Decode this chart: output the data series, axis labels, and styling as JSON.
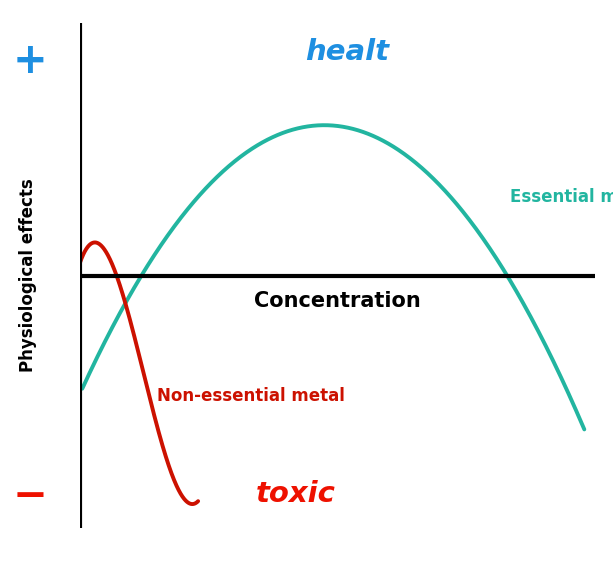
{
  "healt_text": "healt",
  "healt_color": "#1E8FE1",
  "toxic_text": "toxic",
  "toxic_color": "#EE1100",
  "concentration_text": "Concentration",
  "ylabel": "Physiological effects",
  "plus_color": "#1E8FE1",
  "minus_color": "#EE1100",
  "essential_label": "Essential metal",
  "essential_color": "#22B5A0",
  "nonessential_label": "Non-essential metal",
  "nonessential_color": "#CC1100",
  "axis_line_color": "#000000",
  "background_color": "#FFFFFF",
  "xlim": [
    0,
    10
  ],
  "ylim": [
    -4.2,
    4.2
  ]
}
